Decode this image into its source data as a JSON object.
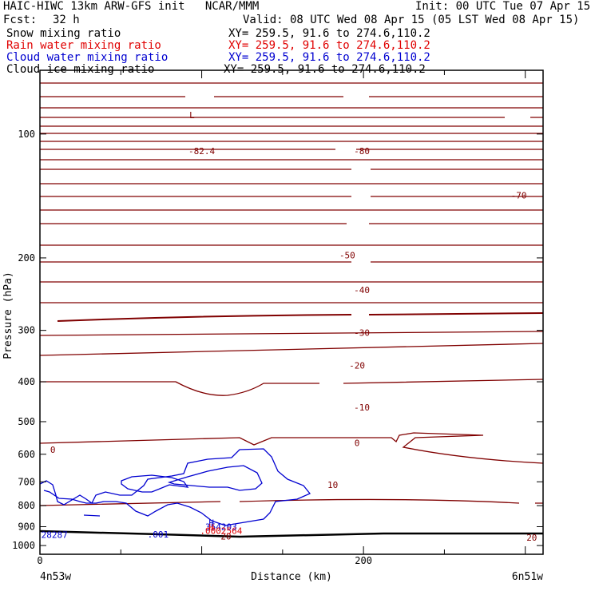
{
  "header": {
    "title": "HAIC-HIWC 13km ARW-GFS init   NCAR/MMM",
    "init": "Init: 00 UTC Tue 07 Apr 15",
    "fcst_label": "Fcst:",
    "fcst_value": "32 h",
    "valid": "Valid: 08 UTC Wed 08 Apr 15 (05 LST Wed 08 Apr 15)",
    "fields": [
      {
        "name": "Snow mixing ratio",
        "xy": "XY= 259.5, 91.6 to 274.6,110.2",
        "color": "#000000"
      },
      {
        "name": "Rain water mixing ratio",
        "xy": "XY= 259.5, 91.6 to 274.6,110.2",
        "color": "#e00000"
      },
      {
        "name": "Cloud water mixing ratio",
        "xy": "XY= 259.5, 91.6 to 274.6,110.2",
        "color": "#0000d0"
      },
      {
        "name": "Cloud ice mixing ratio",
        "xy": "XY= 259.5, 91.6 to 274.6,110.2",
        "color": "#000000"
      }
    ]
  },
  "chart_data": {
    "type": "contour cross-section",
    "xlabel": "Distance (km)",
    "ylabel": "Pressure (hPa)",
    "x_tick_labels": [
      {
        "x": 0,
        "label": "0"
      },
      {
        "x": 200,
        "label": "200"
      }
    ],
    "xlim": [
      0,
      311
    ],
    "ylim": [
      1050,
      70
    ],
    "y_scale": "log",
    "y_tick_labels": [
      100,
      200,
      300,
      400,
      500,
      600,
      700,
      800,
      900,
      1000
    ],
    "endpoint_labels": {
      "left": "4n53w",
      "right": "6n51w"
    },
    "temperature_contour_labels": [
      {
        "x": 100,
        "p": 110,
        "label": "-82.4",
        "color": "#800000"
      },
      {
        "x": 199,
        "p": 110,
        "label": "-80",
        "color": "#800000"
      },
      {
        "x": 296,
        "p": 141,
        "label": "-70",
        "color": "#800000"
      },
      {
        "x": 190,
        "p": 197,
        "label": "-50",
        "color": "#800000"
      },
      {
        "x": 199,
        "p": 239,
        "label": "-40",
        "color": "#800000"
      },
      {
        "x": 199,
        "p": 304,
        "label": "-30",
        "color": "#800000"
      },
      {
        "x": 196,
        "p": 365,
        "label": "-20",
        "color": "#800000"
      },
      {
        "x": 199,
        "p": 461,
        "label": "-10",
        "color": "#800000"
      },
      {
        "x": 8,
        "p": 585,
        "label": "0",
        "color": "#800000"
      },
      {
        "x": 196,
        "p": 563,
        "label": "0",
        "color": "#800000"
      },
      {
        "x": 181,
        "p": 712,
        "label": "10",
        "color": "#800000"
      },
      {
        "x": 115,
        "p": 950,
        "label": "20",
        "color": "#800000"
      },
      {
        "x": 304,
        "p": 955,
        "label": "20",
        "color": "#800000"
      }
    ],
    "cloud_water_labels": [
      {
        "x": 106,
        "p": 880,
        "label": "H",
        "color": "#0000d0"
      },
      {
        "x": 112,
        "p": 899,
        "label": "354203",
        "color": "#0000d0"
      },
      {
        "x": 73,
        "p": 939,
        "label": ".001",
        "color": "#0000d0"
      },
      {
        "x": 9,
        "p": 941,
        "label": "28287",
        "color": "#0000d0"
      }
    ],
    "rain_water_labels": [
      {
        "x": 106,
        "p": 901,
        "label": "H",
        "color": "#e00000"
      },
      {
        "x": 112,
        "p": 921,
        "label": ".0002564",
        "color": "#e00000"
      }
    ],
    "other_labels": [
      {
        "x": 94,
        "p": 90,
        "label": "L",
        "color": "#800000"
      }
    ]
  }
}
